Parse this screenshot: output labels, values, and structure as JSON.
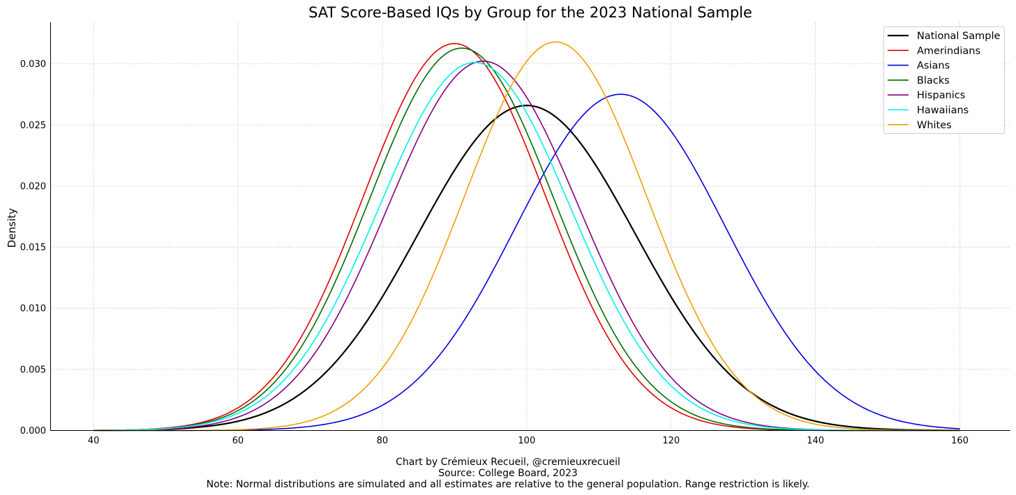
{
  "chart_data": {
    "type": "line",
    "title": "SAT Score-Based IQs by Group for the 2023 National Sample",
    "xlabel": "",
    "ylabel": "Density",
    "xlim": [
      34,
      167
    ],
    "ylim": [
      0,
      0.0334
    ],
    "xticks": [
      40,
      60,
      80,
      100,
      120,
      140,
      160
    ],
    "yticks": [
      0.0,
      0.005,
      0.01,
      0.015,
      0.02,
      0.025,
      0.03
    ],
    "ytick_labels": [
      "0.000",
      "0.005",
      "0.010",
      "0.015",
      "0.020",
      "0.025",
      "0.030"
    ],
    "x_range": [
      40,
      160
    ],
    "grid": true,
    "legend_position": "top-right",
    "series": [
      {
        "name": "National Sample",
        "color": "#000000",
        "mean": 100.0,
        "sd": 15.0,
        "width": 2.2
      },
      {
        "name": "Amerindians",
        "color": "#e00000",
        "mean": 90.0,
        "sd": 12.6,
        "width": 1.6
      },
      {
        "name": "Asians",
        "color": "#0000e0",
        "mean": 113.0,
        "sd": 14.5,
        "width": 1.6
      },
      {
        "name": "Blacks",
        "color": "#006b00",
        "mean": 91.0,
        "sd": 12.75,
        "width": 1.6
      },
      {
        "name": "Hispanics",
        "color": "#800080",
        "mean": 94.0,
        "sd": 13.2,
        "width": 1.6
      },
      {
        "name": "Hawaiians",
        "color": "#00f0f0",
        "mean": 92.8,
        "sd": 13.25,
        "width": 1.6
      },
      {
        "name": "Whites",
        "color": "#f0a000",
        "mean": 104.0,
        "sd": 12.55,
        "width": 1.6
      }
    ]
  },
  "captions": {
    "line1": "Chart by Crémieux Recueil, @cremieuxrecueil",
    "line2": "Source: College Board, 2023",
    "line3": "Note: Normal distributions are simulated and all estimates are relative to the general population. Range restriction is likely."
  }
}
